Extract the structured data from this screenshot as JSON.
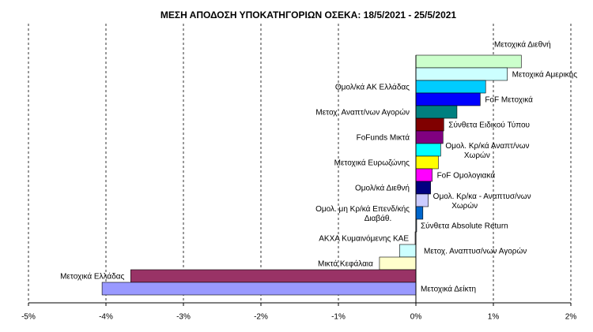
{
  "chart_data": {
    "type": "bar",
    "orientation": "horizontal",
    "title": "ΜΕΣΗ ΑΠΟΔΟΣΗ ΥΠΟΚΑΤΗΓΟΡΙΩΝ ΟΣΕΚΑ: 18/5/2021 - 25/5/2021",
    "categories": [
      "Μετοχικά Διεθνή",
      "Μετοχικά Αμερικής",
      "Ομολ/κά ΑΚ Ελλάδας",
      "FoF Μετοχικά",
      "Μετοχ. Αναπτ/νων Αγορών",
      "Σύνθετα Ειδικού Τύπου",
      "FoFunds Μικτά",
      "Ομολ. Κρ/κά Αναπτ/νων Χωρών",
      "Μετοχικά Ευρωζώνης",
      "FoF Ομολογιακά",
      "Ομολ/κά Διεθνή",
      "Ομολ. Κρ/κα - Αναπτυσ/νων Χωρών",
      "Ομολ. μη Κρ/κά Επενδ/κής Διαβάθ.",
      "Σύνθετα Absolute Return",
      "ΑΚΧΑ Κυμαινόμενης ΚΑΕ",
      "Μετοχ. Αναπτυσ/νων Αγορών",
      "Μικτά Κεφάλαια",
      "Μετοχικά Ελλάδας",
      "Μετοχικά Δείκτη"
    ],
    "values": [
      1.36,
      1.18,
      0.9,
      0.83,
      0.53,
      0.36,
      0.35,
      0.32,
      0.29,
      0.21,
      0.19,
      0.16,
      0.09,
      0.01,
      -0.01,
      -0.21,
      -0.47,
      -3.68,
      -4.05
    ],
    "colors": [
      "#ccffcc",
      "#ccffff",
      "#00ccff",
      "#0000ff",
      "#008080",
      "#800000",
      "#800080",
      "#00ffff",
      "#ffff00",
      "#ff00ff",
      "#000080",
      "#ccccff",
      "#0066cc",
      "#99ccff",
      "#ffffff",
      "#ccffff",
      "#ffffcc",
      "#993366",
      "#9999ff"
    ],
    "xlim": [
      -5,
      2
    ],
    "xticks": [
      {
        "value": -5,
        "label": "-5%"
      },
      {
        "value": -4,
        "label": "-4%"
      },
      {
        "value": -3,
        "label": "-3%"
      },
      {
        "value": -2,
        "label": "-2%"
      },
      {
        "value": -1,
        "label": "-1%"
      },
      {
        "value": 0,
        "label": "0%"
      },
      {
        "value": 1,
        "label": "1%"
      },
      {
        "value": 2,
        "label": "2%"
      }
    ],
    "grid": true
  }
}
